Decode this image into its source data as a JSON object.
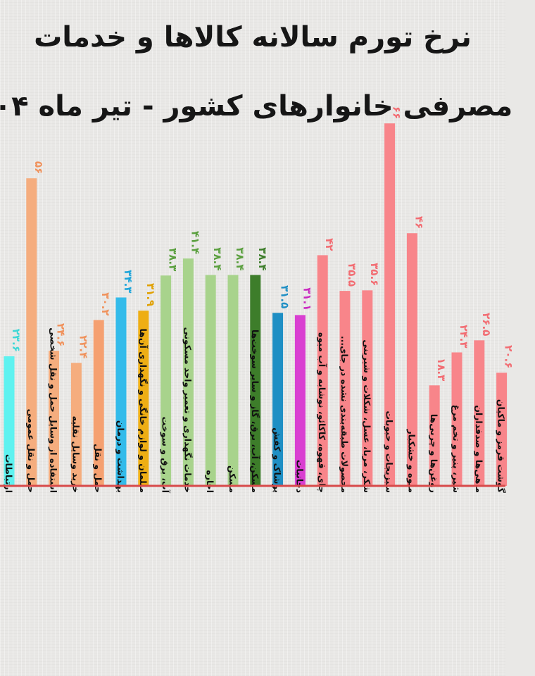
{
  "title_lines": [
    "نرخ تورم سالانه کالاها و خدمات",
    "مصرفی خانوارهای کشور - تیر ماه ۰۴"
  ],
  "colors": {
    "baseline": "#d84a4a",
    "background": "#e9e8e6"
  },
  "chart_data": {
    "type": "bar",
    "title": "نرخ تورم سالانه کالاها و خدمات مصرفی خانوارهای کشور - تیر ماه ۰۴",
    "categories": [
      "ارتباطات",
      "حمل و نقل عمومی",
      "استفاده از وسایل حمل و نقل شخصی",
      "خرید وسایل نقلیه",
      "حمل و نقل",
      "بهداشت و درمان",
      "مبلمان و لوازم خانگی و نگهداری آن‌ها",
      "آب، برق و سوخت",
      "خدمات نگهداری و تعمیر واحد مسکونی",
      "اجاره",
      "مسکن",
      "مسکن، آب، برق، گاز و سایر سوخت‌ها",
      "پوشاک و کفش",
      "دخانیات",
      "چای، قهوه، کاکائو، نوشابه و آب میوه",
      "محصولات طبقه‌بندی نشده در جای...",
      "شکر، مربا، عسل، شکلات و شیرینی",
      "سبزیجات و حبوبات",
      "میوه و خشکبار",
      "روغن‌ها و چربی‌ها",
      "شیر، پنیر و تخم مرغ",
      "ماهی‌ها و صدفداران",
      "گوشت قرمز و ماکیان"
    ],
    "values": [
      23.6,
      56,
      24.6,
      22.4,
      30.2,
      34.3,
      31.9,
      38.3,
      41.4,
      38.4,
      38.4,
      38.4,
      31.5,
      31.1,
      42,
      35.5,
      35.6,
      66,
      46,
      18.3,
      24.3,
      26.5,
      20.6
    ],
    "value_labels": [
      "۲۳.۶",
      "۵۶",
      "۲۴.۶",
      "۲۲.۴",
      "۳۰.۲",
      "۳۴.۳",
      "۳۱.۹",
      "۳۸.۳",
      "۴۱.۴",
      "۳۸.۴",
      "۳۸.۴",
      "۳۸.۴",
      "۳۱.۵",
      "۳۱.۱",
      "۴۲",
      "۳۵.۵",
      "۳۵.۶",
      "۶۶",
      "۴۶",
      "۱۸.۳",
      "۲۴.۳",
      "۲۶.۵",
      "۲۰.۶"
    ],
    "bar_colors": [
      "#5ef2f0",
      "#f5ad7e",
      "#f5ad7e",
      "#f5ad7e",
      "#f5a070",
      "#33bbea",
      "#eeae14",
      "#a8d38c",
      "#a8d38c",
      "#a8d38c",
      "#a8d38c",
      "#3d7d2a",
      "#1f8fc4",
      "#d93fd1",
      "#f8858a",
      "#f8858a",
      "#f8858a",
      "#f8858a",
      "#f8858a",
      "#f8858a",
      "#f8858a",
      "#f8858a",
      "#f8858a"
    ],
    "label_colors": [
      "#3fd8d6",
      "#f0925c",
      "#f0925c",
      "#f0925c",
      "#f0925c",
      "#1aa4da",
      "#e0a000",
      "#5a9f3e",
      "#5a9f3e",
      "#5a9f3e",
      "#5a9f3e",
      "#3d7d2a",
      "#1f8fc4",
      "#c928c0",
      "#f26c72",
      "#f26c72",
      "#f26c72",
      "#f26c72",
      "#f26c72",
      "#f26c72",
      "#f26c72",
      "#f26c72",
      "#f26c72"
    ],
    "ylim": [
      0,
      70
    ],
    "grid": false,
    "legend": "none"
  }
}
